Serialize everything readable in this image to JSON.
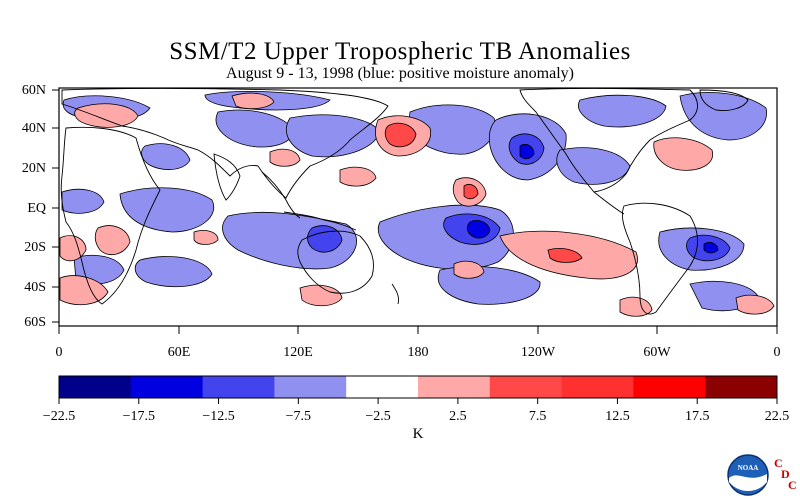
{
  "title": "SSM/T2 Upper Tropospheric TB Anomalies",
  "subtitle": "August 9 - 13, 1998 (blue: positive moisture anomaly)",
  "map": {
    "lat_labels": [
      "60N",
      "40N",
      "20N",
      "EQ",
      "20S",
      "40S",
      "60S"
    ],
    "lon_labels": [
      "0",
      "60E",
      "120E",
      "180",
      "120W",
      "60W",
      "0"
    ]
  },
  "colorbar": {
    "unit": "K",
    "tick_labels": [
      "−22.5",
      "−17.5",
      "−12.5",
      "−7.5",
      "−2.5",
      "2.5",
      "7.5",
      "12.5",
      "17.5",
      "22.5"
    ],
    "colors": [
      "#00008b",
      "#0000e0",
      "#4444ee",
      "#9090f0",
      "#ffffff",
      "#ffa8a8",
      "#ff4848",
      "#ff3030",
      "#ff0000",
      "#8b0000"
    ]
  },
  "logo": {
    "noaa_text": "NOAA",
    "cdc_letters": [
      "C",
      "D",
      "C"
    ]
  }
}
